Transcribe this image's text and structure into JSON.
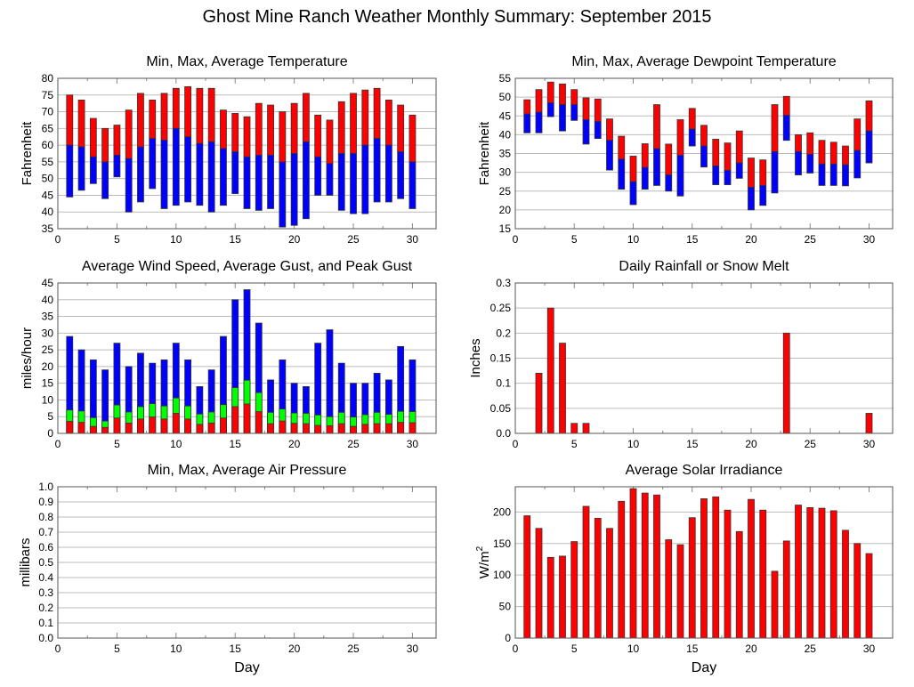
{
  "title": "Ghost Mine Ranch Weather Monthly Summary: September 2015",
  "chart_data": [
    {
      "id": "temperature",
      "type": "bar",
      "subtype": "floating-range",
      "title": "Min, Max, Average Temperature",
      "xlabel": "",
      "ylabel": "Fahrenheit",
      "xlim": [
        0,
        32
      ],
      "ylim": [
        35,
        80
      ],
      "xticks": [
        0,
        5,
        10,
        15,
        20,
        25,
        30
      ],
      "yticks": [
        35,
        40,
        45,
        50,
        55,
        60,
        65,
        70,
        75,
        80
      ],
      "grid": true,
      "x": [
        1,
        2,
        3,
        4,
        5,
        6,
        7,
        8,
        9,
        10,
        11,
        12,
        13,
        14,
        15,
        16,
        17,
        18,
        19,
        20,
        21,
        22,
        23,
        24,
        25,
        26,
        27,
        28,
        29,
        30
      ],
      "series": [
        {
          "name": "Max",
          "color": "#ff0000",
          "values": [
            75,
            73.5,
            68,
            65,
            66,
            70.5,
            75.5,
            73.5,
            75.5,
            77,
            77.5,
            77,
            77,
            70.5,
            69.5,
            68.5,
            72.5,
            72,
            70,
            72.5,
            75.5,
            69,
            67.5,
            73,
            75.5,
            76.5,
            77,
            73.5,
            72,
            69
          ]
        },
        {
          "name": "Average",
          "color": "#0000ff",
          "values": [
            60,
            59.5,
            56.5,
            55,
            57,
            56,
            59.5,
            62,
            61.5,
            65,
            62.5,
            60.5,
            61,
            59,
            58,
            56.5,
            57,
            57,
            55,
            57.5,
            61,
            56.5,
            54.5,
            57.5,
            57.5,
            60,
            62,
            60,
            58,
            55
          ]
        },
        {
          "name": "Min",
          "values": [
            44.5,
            46.5,
            48.5,
            44,
            50.5,
            40,
            43,
            47,
            41,
            42,
            43,
            42,
            40,
            42,
            45.5,
            41,
            40.5,
            41,
            35.5,
            36,
            38,
            45,
            45,
            40.5,
            39.5,
            39.5,
            43,
            43,
            44,
            41
          ]
        }
      ]
    },
    {
      "id": "dewpoint",
      "type": "bar",
      "subtype": "floating-range",
      "title": "Min, Max, Average Dewpoint Temperature",
      "xlabel": "",
      "ylabel": "Fahrenheit",
      "xlim": [
        0,
        32
      ],
      "ylim": [
        15,
        55
      ],
      "xticks": [
        0,
        5,
        10,
        15,
        20,
        25,
        30
      ],
      "yticks": [
        15,
        20,
        25,
        30,
        35,
        40,
        45,
        50,
        55
      ],
      "grid": true,
      "x": [
        1,
        2,
        3,
        4,
        5,
        6,
        7,
        8,
        9,
        10,
        11,
        12,
        13,
        14,
        15,
        16,
        17,
        18,
        19,
        20,
        21,
        22,
        23,
        24,
        25,
        26,
        27,
        28,
        29,
        30
      ],
      "series": [
        {
          "name": "Max",
          "color": "#ff0000",
          "values": [
            49.3,
            52,
            54,
            53.5,
            52,
            49.8,
            49.5,
            44.2,
            39.6,
            34.3,
            37.6,
            48,
            37.5,
            44,
            47,
            42.5,
            38.8,
            37.8,
            41,
            33.8,
            33.3,
            48,
            50.2,
            40,
            40.5,
            38.5,
            38,
            37,
            44.2,
            49
          ]
        },
        {
          "name": "Average",
          "color": "#0000ff",
          "values": [
            45.5,
            46,
            48.5,
            48,
            48,
            44,
            43.5,
            38.5,
            33.5,
            27.5,
            31.3,
            36.3,
            29.3,
            34.5,
            41.5,
            37,
            31.7,
            30.5,
            32.5,
            26,
            26.5,
            35.5,
            45.2,
            35.5,
            34.8,
            32.2,
            32.2,
            32,
            35.8,
            41
          ]
        },
        {
          "name": "Min",
          "values": [
            40.5,
            40.5,
            44.8,
            41,
            43.8,
            37.5,
            39,
            30.6,
            25.5,
            21.4,
            25.5,
            26.5,
            25,
            23.7,
            37,
            31.4,
            26.7,
            26.7,
            28.4,
            20,
            21.2,
            24.5,
            38.5,
            29.3,
            29.8,
            26.5,
            26.5,
            26.4,
            28.5,
            32.5
          ]
        }
      ]
    },
    {
      "id": "wind",
      "type": "bar",
      "subtype": "overlaid",
      "title": "Average Wind Speed, Average Gust, and Peak Gust",
      "xlabel": "",
      "ylabel": "miles/hour",
      "xlim": [
        0,
        32
      ],
      "ylim": [
        0,
        45
      ],
      "xticks": [
        0,
        5,
        10,
        15,
        20,
        25,
        30
      ],
      "yticks": [
        0,
        5,
        10,
        15,
        20,
        25,
        30,
        35,
        40,
        45
      ],
      "grid": true,
      "x": [
        1,
        2,
        3,
        4,
        5,
        6,
        7,
        8,
        9,
        10,
        11,
        12,
        13,
        14,
        15,
        16,
        17,
        18,
        19,
        20,
        21,
        22,
        23,
        24,
        25,
        26,
        27,
        28,
        29,
        30
      ],
      "series": [
        {
          "name": "Peak Gust",
          "color": "#0000ff",
          "values": [
            29,
            25,
            22,
            19,
            27,
            20,
            24,
            21,
            22,
            27,
            22,
            14,
            19,
            29,
            40,
            43,
            33,
            16,
            22,
            15,
            14,
            27,
            31,
            21,
            15,
            15,
            18,
            16,
            26,
            22
          ]
        },
        {
          "name": "Average Gust",
          "color": "#00ff00",
          "values": [
            7,
            6.7,
            4.7,
            3.7,
            8.5,
            6.4,
            8,
            8.9,
            8.2,
            10.6,
            8.2,
            5.8,
            6.4,
            8.6,
            13.7,
            15.9,
            12.2,
            6.3,
            7.3,
            6.1,
            6,
            5.5,
            5,
            6.3,
            4.9,
            5.6,
            6.3,
            5.7,
            6.6,
            6.5
          ]
        },
        {
          "name": "Average Wind Speed",
          "color": "#ff0000",
          "values": [
            3.6,
            3.3,
            2.1,
            1.8,
            4.6,
            3.1,
            4.3,
            4.9,
            4.3,
            6,
            4.3,
            2.7,
            3.1,
            4.6,
            8,
            8.8,
            6.5,
            2.9,
            3.7,
            3,
            2.9,
            2.4,
            2.3,
            2.9,
            2.1,
            2.7,
            2.9,
            2.9,
            3.3,
            3.2
          ]
        }
      ]
    },
    {
      "id": "rainfall",
      "type": "bar",
      "title": "Daily Rainfall or Snow Melt",
      "xlabel": "",
      "ylabel": "Inches",
      "xlim": [
        0,
        32
      ],
      "ylim": [
        0,
        0.3
      ],
      "xticks": [
        0,
        5,
        10,
        15,
        20,
        25,
        30
      ],
      "yticks": [
        "0.0",
        "0.05",
        "0.1",
        "0.15",
        "0.2",
        "0.25",
        "0.3"
      ],
      "grid": true,
      "x": [
        2,
        3,
        4,
        5,
        6,
        23,
        30
      ],
      "series": [
        {
          "name": "Rainfall",
          "color": "#ff0000",
          "values": [
            0.12,
            0.25,
            0.18,
            0.02,
            0.02,
            0.2,
            0.04
          ]
        }
      ]
    },
    {
      "id": "pressure",
      "type": "bar",
      "title": "Min, Max, Average Air Pressure",
      "xlabel": "Day",
      "ylabel": "millibars",
      "xlim": [
        0,
        32
      ],
      "ylim": [
        0,
        1
      ],
      "xticks": [
        0,
        5,
        10,
        15,
        20,
        25,
        30
      ],
      "yticks": [
        "0.0",
        "0.1",
        "0.2",
        "0.3",
        "0.4",
        "0.5",
        "0.6",
        "0.7",
        "0.8",
        "0.9",
        "1.0"
      ],
      "grid": true,
      "x": [],
      "series": []
    },
    {
      "id": "solar",
      "type": "bar",
      "title": "Average Solar Irradiance",
      "xlabel": "Day",
      "ylabel": "W/m",
      "ylabel_sup": "2",
      "xlim": [
        0,
        32
      ],
      "ylim": [
        0,
        240
      ],
      "xticks": [
        0,
        5,
        10,
        15,
        20,
        25,
        30
      ],
      "yticks": [
        0,
        50,
        100,
        150,
        200
      ],
      "grid": true,
      "x": [
        1,
        2,
        3,
        4,
        5,
        6,
        7,
        8,
        9,
        10,
        11,
        12,
        13,
        14,
        15,
        16,
        17,
        18,
        19,
        20,
        21,
        22,
        23,
        24,
        25,
        26,
        27,
        28,
        29,
        30
      ],
      "series": [
        {
          "name": "Solar Irradiance",
          "color": "#ff0000",
          "values": [
            194,
            174,
            128,
            130,
            153,
            209,
            190,
            174,
            217,
            237,
            230,
            227,
            156,
            148,
            191,
            221,
            224,
            203,
            169,
            220,
            203,
            106,
            154,
            211,
            207,
            206,
            202,
            171,
            150,
            134
          ]
        }
      ]
    }
  ]
}
